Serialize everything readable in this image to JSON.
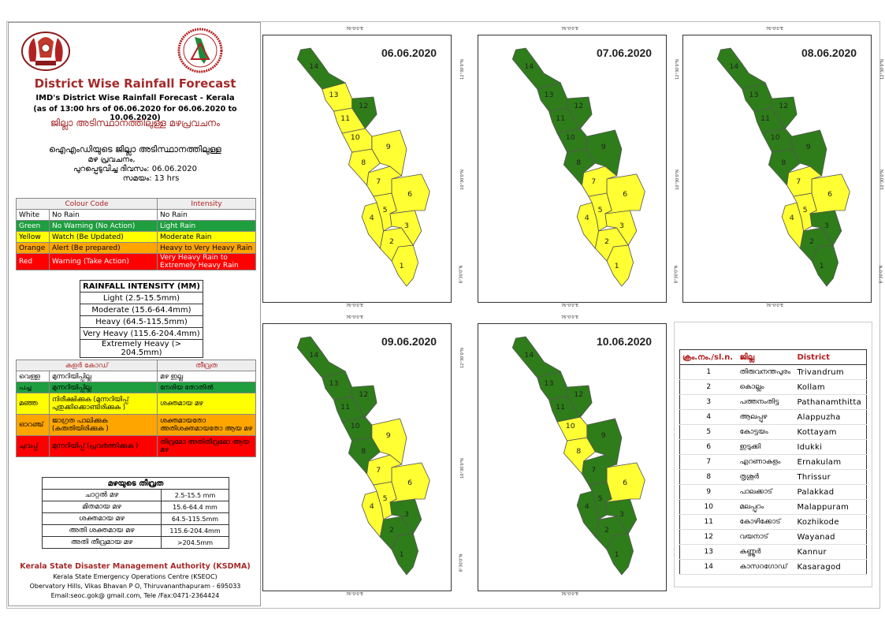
{
  "title": "District Wise Rainfall Forecast",
  "subtitle1": "IMD's District Wise Rainfall Forecast - Kerala",
  "subtitle2": "(as of 13:00 hrs of 06.06.2020  for 06.06.2020  to 10.06.2020)",
  "subtitle_ml": "ജില്ലാ അടിസ്ഥാനത്തിലുള്ള മഴപ്രവചനം",
  "issued_ml_1": "ഐഎംഡിയുടെ ജില്ലാ  അടിസ്ഥാനത്തിലുള്ള",
  "issued_ml_2": "മഴ പ്രവചനം,",
  "issued_ml_3": "പുറപ്പെടുവിച്ച   ദിവസം: 06.06.2020",
  "issued_ml_4": "സമയം: 13 hrs",
  "colour_code": {
    "h1": "Colour Code",
    "h2": "Intensity",
    "rows": [
      {
        "c": "White",
        "code": "No Rain",
        "int": "No Rain",
        "bg": "#ffffff"
      },
      {
        "c": "Green",
        "code": "No Warning (No Action)",
        "int": "Light Rain",
        "bg": "#1f9e3f"
      },
      {
        "c": "Yellow",
        "code": "Watch (Be Updated)",
        "int": "Moderate Rain",
        "bg": "#ffff00"
      },
      {
        "c": "Orange",
        "code": "Alert (Be prepared)",
        "int": "Heavy to Very Heavy Rain",
        "bg": "#ffa500"
      },
      {
        "c": "Red",
        "code": "Warning (Take Action)",
        "int": "Very Heavy Rain to Extremely Heavy Rain",
        "bg": "#ff0000"
      }
    ]
  },
  "rain_intensity": {
    "header": "RAINFALL INTENSITY (MM)",
    "rows": [
      "Light (2.5-15.5mm)",
      "Moderate (15.6-64.4mm)",
      "Heavy (64.5-115.5mm)",
      "Very Heavy (115.6-204.4mm)",
      "Extremely Heavy (> 204.5mm)"
    ]
  },
  "colour_code_ml": {
    "h1": "കളർ കോഡ്",
    "h2": "തീവ്രത",
    "rows": [
      {
        "c": "വെള്ള",
        "code": "മുന്നറിയിപ്പില്ല",
        "int": "മഴ ഇല്ല",
        "bg": "#ffffff"
      },
      {
        "c": "പച്ച",
        "code": "മുന്നറിയിപ്പില്ല",
        "int": "നേരിയ തോതിൽ",
        "bg": "#1f9e3f"
      },
      {
        "c": "മഞ്ഞ",
        "code": "നിരീക്ഷിക്കുക (മുന്നറിയിപ്പ് പുതുക്കിക്കൊണ്ടിരിക്കുക )",
        "int": "ശക്തമായ മഴ",
        "bg": "#ffff00"
      },
      {
        "c": "ഓറഞ്ച്",
        "code": "ജാഗ്രത പാലിക്കുക (കരുതിയിരിക്കുക )",
        "int": "ശക്തമായതോ അതിശക്തമായതോ ആയ മഴ",
        "bg": "#ffa500"
      },
      {
        "c": "ചുവപ്പ്",
        "code": "മുന്നറിയിപ്പ് (പ്രവർത്തിക്കുക )",
        "int": "തീവ്രമോ അതിതീവ്രമോ ആയ മഴ",
        "bg": "#ff0000"
      }
    ]
  },
  "intensity_ml": {
    "header": "മഴയുടെ തീവ്രത",
    "rows": [
      {
        "n": "ചാറ്റൽ മഴ",
        "v": "2.5-15.5 mm"
      },
      {
        "n": "മിതമായ മഴ",
        "v": "15.6-64.4 mm"
      },
      {
        "n": "ശക്തമായ മഴ",
        "v": "64.5-115.5mm"
      },
      {
        "n": "അതി ശക്തമായ മഴ",
        "v": "115.6-204.4mm"
      },
      {
        "n": "അതി തീവ്രമായ മഴ",
        "v": ">204.5mm"
      }
    ]
  },
  "footer": {
    "org": "Kerala State Disaster Management Authority (KSDMA)",
    "line1": "Kerala State Emergency Operations Centre (KSEOC)",
    "line2": "Obervatory Hills, Vikas Bhavan P O, Thiruvananthapuram - 695033",
    "line3": "Email:seoc.gok@ gmail.com, Tele /Fax:0471-2364424"
  },
  "colors": {
    "green": "#2e7d1a",
    "yellow": "#ffff33",
    "border": "#555555"
  },
  "ticks": {
    "top": "76°0'0\"E",
    "lat_top": "12°30'0\"N",
    "lat_mid": "10°30'0\"N",
    "lat_bot": "8°30'0\"N"
  },
  "maps": [
    {
      "date": "06.06.2020",
      "colors": [
        "yellow",
        "yellow",
        "yellow",
        "yellow",
        "yellow",
        "yellow",
        "yellow",
        "yellow",
        "yellow",
        "yellow",
        "yellow",
        "green",
        "yellow",
        "green"
      ]
    },
    {
      "date": "07.06.2020",
      "colors": [
        "yellow",
        "yellow",
        "yellow",
        "yellow",
        "yellow",
        "yellow",
        "yellow",
        "green",
        "green",
        "green",
        "green",
        "green",
        "green",
        "green"
      ]
    },
    {
      "date": "08.06.2020",
      "colors": [
        "green",
        "green",
        "green",
        "yellow",
        "yellow",
        "yellow",
        "yellow",
        "green",
        "green",
        "green",
        "green",
        "green",
        "green",
        "green"
      ]
    },
    {
      "date": "09.06.2020",
      "colors": [
        "green",
        "green",
        "green",
        "yellow",
        "yellow",
        "yellow",
        "yellow",
        "green",
        "yellow",
        "green",
        "green",
        "green",
        "green",
        "green"
      ]
    },
    {
      "date": "10.06.2020",
      "colors": [
        "green",
        "green",
        "green",
        "green",
        "green",
        "yellow",
        "green",
        "yellow",
        "green",
        "yellow",
        "green",
        "green",
        "green",
        "green"
      ]
    }
  ],
  "district_table": {
    "h_no": "ക്രം.നം./sl.n.",
    "h_ml": "ജില്ല",
    "h_en": "District",
    "rows": [
      {
        "n": "1",
        "ml": "തിരുവനന്തപുരം",
        "en": "Trivandrum"
      },
      {
        "n": "2",
        "ml": "കൊല്ലം",
        "en": "Kollam"
      },
      {
        "n": "3",
        "ml": "പത്തനംതിട്ട",
        "en": "Pathanamthitta"
      },
      {
        "n": "4",
        "ml": "ആലപ്പുഴ",
        "en": "Alappuzha"
      },
      {
        "n": "5",
        "ml": "കോട്ടയം",
        "en": "Kottayam"
      },
      {
        "n": "6",
        "ml": "ഇടുക്കി",
        "en": "Idukki"
      },
      {
        "n": "7",
        "ml": "എറണാകുളം",
        "en": "Ernakulam"
      },
      {
        "n": "8",
        "ml": "തൃശൂർ",
        "en": "Thrissur"
      },
      {
        "n": "9",
        "ml": "പാലക്കാട്",
        "en": "Palakkad"
      },
      {
        "n": "10",
        "ml": "മലപ്പുറം",
        "en": "Malappuram"
      },
      {
        "n": "11",
        "ml": "കോഴിക്കോട്",
        "en": "Kozhikode"
      },
      {
        "n": "12",
        "ml": "വയനാട്",
        "en": "Wayanad"
      },
      {
        "n": "13",
        "ml": "കണ്ണൂർ",
        "en": "Kannur"
      },
      {
        "n": "14",
        "ml": "കാസറഗോഡ്",
        "en": "Kasaragod"
      }
    ]
  }
}
